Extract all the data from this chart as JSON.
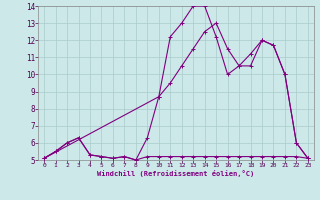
{
  "xlabel": "Windchill (Refroidissement éolien,°C)",
  "background_color": "#cce8e8",
  "line_color": "#800080",
  "grid_color": "#aacccc",
  "xlim": [
    -0.5,
    23.5
  ],
  "ylim": [
    5,
    14
  ],
  "yticks": [
    5,
    6,
    7,
    8,
    9,
    10,
    11,
    12,
    13,
    14
  ],
  "xticks": [
    0,
    1,
    2,
    3,
    4,
    5,
    6,
    7,
    8,
    9,
    10,
    11,
    12,
    13,
    14,
    15,
    16,
    17,
    18,
    19,
    20,
    21,
    22,
    23
  ],
  "curve1_x": [
    0,
    1,
    2,
    3,
    4,
    5,
    6,
    7,
    8,
    9,
    10,
    11,
    12,
    13,
    14,
    15,
    16,
    17,
    18,
    19,
    20,
    21,
    22,
    23
  ],
  "curve1_y": [
    5.1,
    5.5,
    6.0,
    6.3,
    5.3,
    5.2,
    5.1,
    5.2,
    5.0,
    6.3,
    8.7,
    12.2,
    13.0,
    14.0,
    14.0,
    12.2,
    10.0,
    10.5,
    10.5,
    12.0,
    11.7,
    10.0,
    6.0,
    5.1
  ],
  "curve2_x": [
    0,
    1,
    2,
    3,
    4,
    5,
    6,
    7,
    8,
    9,
    10,
    11,
    12,
    13,
    14,
    15,
    16,
    17,
    18,
    19,
    20,
    21,
    22,
    23
  ],
  "curve2_y": [
    5.1,
    5.5,
    6.0,
    6.3,
    5.3,
    5.2,
    5.1,
    5.2,
    5.0,
    5.2,
    5.2,
    5.2,
    5.2,
    5.2,
    5.2,
    5.2,
    5.2,
    5.2,
    5.2,
    5.2,
    5.2,
    5.2,
    5.2,
    5.1
  ],
  "curve3_x": [
    0,
    10,
    11,
    12,
    13,
    14,
    15,
    16,
    17,
    18,
    19,
    20,
    21,
    22,
    23
  ],
  "curve3_y": [
    5.1,
    8.7,
    9.5,
    10.5,
    11.5,
    12.5,
    13.0,
    11.5,
    10.5,
    11.2,
    12.0,
    11.7,
    10.0,
    6.0,
    5.1
  ],
  "tick_fontsize": 5,
  "xlabel_fontsize": 5,
  "tick_color": "#550055",
  "spine_color": "#888888"
}
